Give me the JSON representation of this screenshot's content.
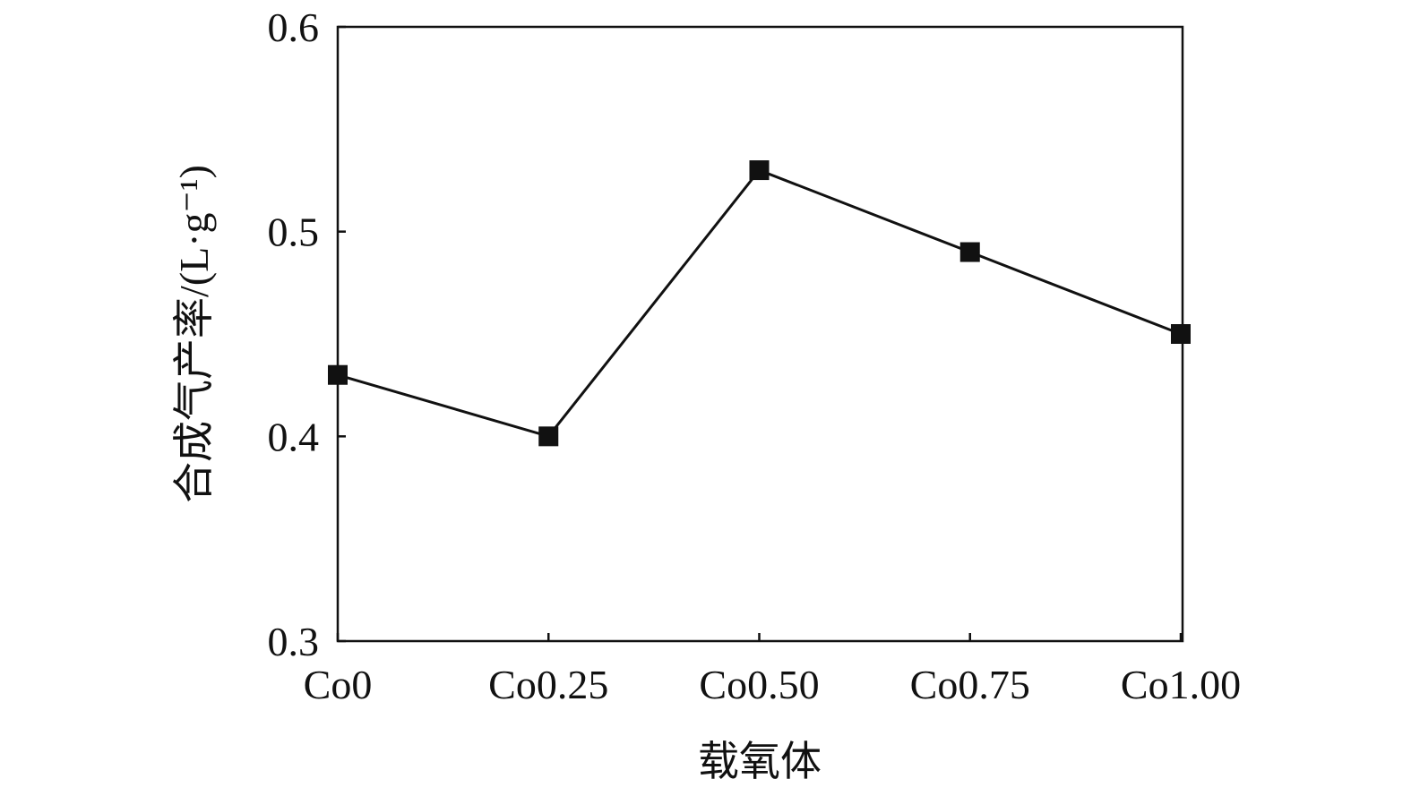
{
  "chart_data": {
    "type": "line",
    "title": "",
    "xlabel": "载氧体",
    "ylabel": "合成气产率/(L·g⁻¹)",
    "categories": [
      "Co0",
      "Co0.25",
      "Co0.50",
      "Co0.75",
      "Co1.00"
    ],
    "series": [
      {
        "values": [
          0.43,
          0.4,
          0.53,
          0.49,
          0.45
        ],
        "marker": "square",
        "color": "#111111"
      }
    ],
    "ylim": [
      0.3,
      0.6
    ],
    "yticks": [
      "0.3",
      "0.4",
      "0.5",
      "0.6"
    ],
    "grid": false,
    "legend": "none"
  }
}
